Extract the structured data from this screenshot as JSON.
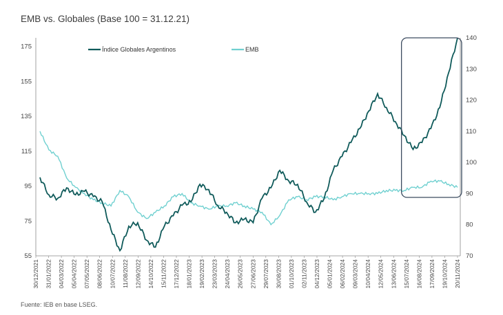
{
  "title": "EMB vs. Globales (Base 100 = 31.12.21)",
  "source": "Fuente: IEB en base LSEG.",
  "colors": {
    "globales": "#0f5a5a",
    "emb": "#6fd0d0",
    "highlight": "#3a4a5e"
  },
  "chart_data": {
    "type": "line",
    "title": "EMB vs. Globales (Base 100 = 31.12.21)",
    "x_tick_labels": [
      "30/12/2021",
      "31/01/2022",
      "04/03/2022",
      "05/04/2022",
      "07/05/2022",
      "08/06/2022",
      "10/07/2022",
      "11/08/2022",
      "12/09/2022",
      "14/10/2022",
      "15/11/2022",
      "17/12/2022",
      "18/01/2023",
      "19/02/2023",
      "23/03/2023",
      "24/04/2023",
      "26/05/2023",
      "27/06/2023",
      "29/07/2023",
      "30/08/2023",
      "01/10/2023",
      "02/11/2023",
      "04/12/2023",
      "05/01/2024",
      "06/02/2024",
      "09/03/2024",
      "10/04/2024",
      "12/05/2024",
      "13/06/2024",
      "15/07/2024",
      "16/08/2024",
      "17/09/2024",
      "19/10/2024",
      "20/11/2024"
    ],
    "y_left": {
      "ticks": [
        55,
        75,
        95,
        115,
        135,
        155,
        175
      ],
      "range": [
        55,
        180
      ]
    },
    "y_right": {
      "ticks": [
        70,
        80,
        90,
        100,
        110,
        120,
        130,
        140
      ],
      "range": [
        70,
        140
      ]
    },
    "series": [
      {
        "name": "Índice Globales Argentinos",
        "axis": "left",
        "values": [
          100,
          90,
          88,
          94,
          90,
          92,
          89,
          86,
          70,
          58,
          72,
          74,
          64,
          60,
          72,
          78,
          84,
          86,
          96,
          93,
          84,
          80,
          74,
          76,
          74,
          88,
          94,
          104,
          98,
          96,
          86,
          80,
          88,
          104,
          112,
          120,
          128,
          138,
          148,
          140,
          132,
          124,
          116,
          120,
          128,
          140,
          160,
          180
        ]
      },
      {
        "name": "EMB",
        "axis": "right",
        "values": [
          110,
          104,
          102,
          95,
          92,
          90,
          88,
          87,
          86,
          91,
          89,
          84,
          82,
          84,
          86,
          89,
          90,
          87,
          86,
          85,
          86,
          86,
          87,
          86,
          85,
          84,
          80,
          83,
          88,
          89,
          88,
          89,
          89,
          88,
          89,
          90,
          90,
          90,
          90,
          91,
          91,
          91,
          92,
          92,
          94,
          94,
          93,
          92
        ]
      }
    ],
    "highlight_box": {
      "x_from_index": 41,
      "x_to_index": 47
    }
  }
}
